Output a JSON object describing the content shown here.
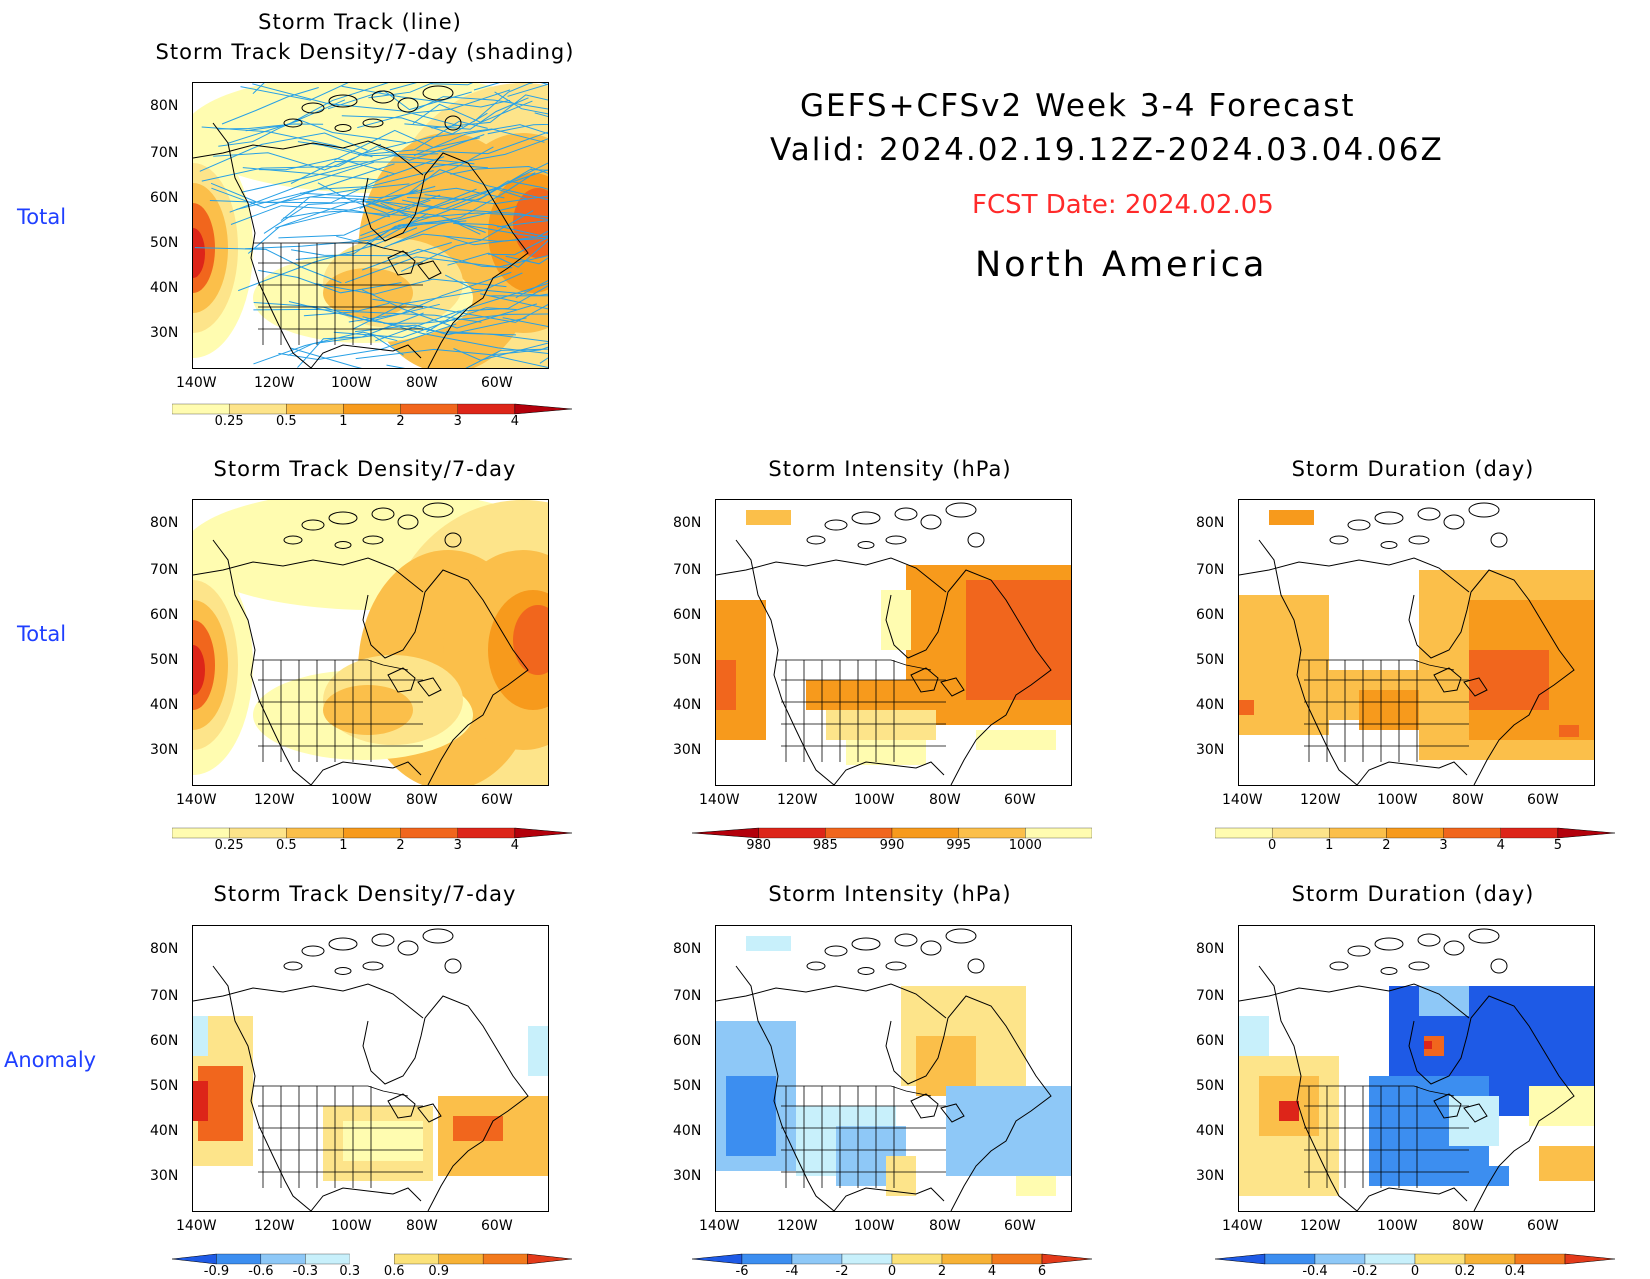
{
  "header": {
    "line1": "GEFS+CFSv2 Week 3-4 Forecast",
    "line2": "Valid: 2024.02.19.12Z-2024.03.04.06Z",
    "fcst_date": "FCST Date: 2024.02.05",
    "region": "North America"
  },
  "row_labels": [
    "Total",
    "Total",
    "Anomaly"
  ],
  "axes": {
    "lat_labels": [
      "80N",
      "70N",
      "60N",
      "50N",
      "40N",
      "30N"
    ],
    "lon_labels": [
      "140W",
      "120W",
      "100W",
      "80W",
      "60W"
    ]
  },
  "panels": {
    "track": {
      "title1": "Storm Track (line)",
      "title2": "Storm Track Density/7-day (shading)"
    },
    "density_total": {
      "title": "Storm Track Density/7-day"
    },
    "intensity_total": {
      "title": "Storm Intensity (hPa)"
    },
    "duration_total": {
      "title": "Storm Duration (day)"
    },
    "density_anom": {
      "title": "Storm Track Density/7-day"
    },
    "intensity_anom": {
      "title": "Storm Intensity (hPa)"
    },
    "duration_anom": {
      "title": "Storm Duration (day)"
    }
  },
  "colorbars": {
    "density": {
      "labels": [
        "0.25",
        "0.5",
        "1",
        "2",
        "3",
        "4"
      ],
      "colors": [
        "#fffcb0",
        "#fde48a",
        "#fbbf4a",
        "#f79a1c",
        "#f1661d",
        "#dd2519",
        "#b3000b"
      ]
    },
    "intensity": {
      "labels": [
        "980",
        "985",
        "990",
        "995",
        "1000"
      ],
      "colors": [
        "#b3000b",
        "#dd2519",
        "#f1661d",
        "#f79a1c",
        "#fbbf4a",
        "#fffcb0"
      ]
    },
    "duration": {
      "labels": [
        "0",
        "1",
        "2",
        "3",
        "4",
        "5"
      ],
      "colors": [
        "#fffcb0",
        "#fde48a",
        "#fbbf4a",
        "#f79a1c",
        "#f1661d",
        "#dd2519",
        "#b3000b"
      ]
    },
    "density_anom": {
      "labels": [
        "-0.9",
        "-0.6",
        "-0.3",
        "0.3",
        "0.6",
        "0.9"
      ],
      "colors": [
        "#1e5ae6",
        "#3c8ef0",
        "#8ec8f7",
        "#c8f0fb",
        "#ffffff",
        "#fbe27a",
        "#f7b236",
        "#f27a1d",
        "#e33a1a"
      ]
    },
    "intensity_anom": {
      "labels": [
        "-6",
        "-4",
        "-2",
        "0",
        "2",
        "4",
        "6"
      ],
      "colors": [
        "#1e5ae6",
        "#3c8ef0",
        "#8ec8f7",
        "#c8f0fb",
        "#fbe27a",
        "#f7b236",
        "#f27a1d",
        "#e33a1a"
      ]
    },
    "duration_anom": {
      "labels": [
        "-0.4",
        "-0.2",
        "0",
        "0.2",
        "0.4"
      ],
      "colors": [
        "#1e5ae6",
        "#3c8ef0",
        "#8ec8f7",
        "#c8f0fb",
        "#fbe27a",
        "#f7b236",
        "#f27a1d",
        "#e33a1a"
      ]
    }
  }
}
